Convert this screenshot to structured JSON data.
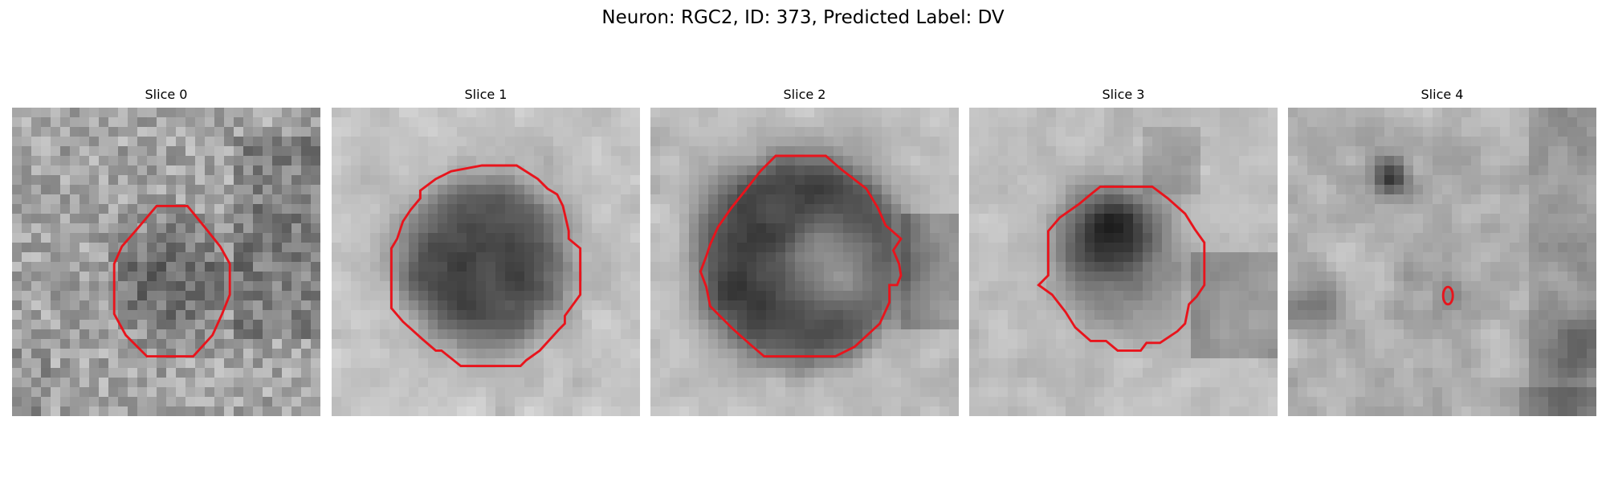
{
  "figure": {
    "title": "Neuron: RGC2, ID: 373, Predicted Label: DV"
  },
  "panels": [
    {
      "title": "Slice 0"
    },
    {
      "title": "Slice 1"
    },
    {
      "title": "Slice 2"
    },
    {
      "title": "Slice 3"
    },
    {
      "title": "Slice 4"
    }
  ],
  "colors": {
    "contour": "#e8141c",
    "background": "#ffffff"
  }
}
